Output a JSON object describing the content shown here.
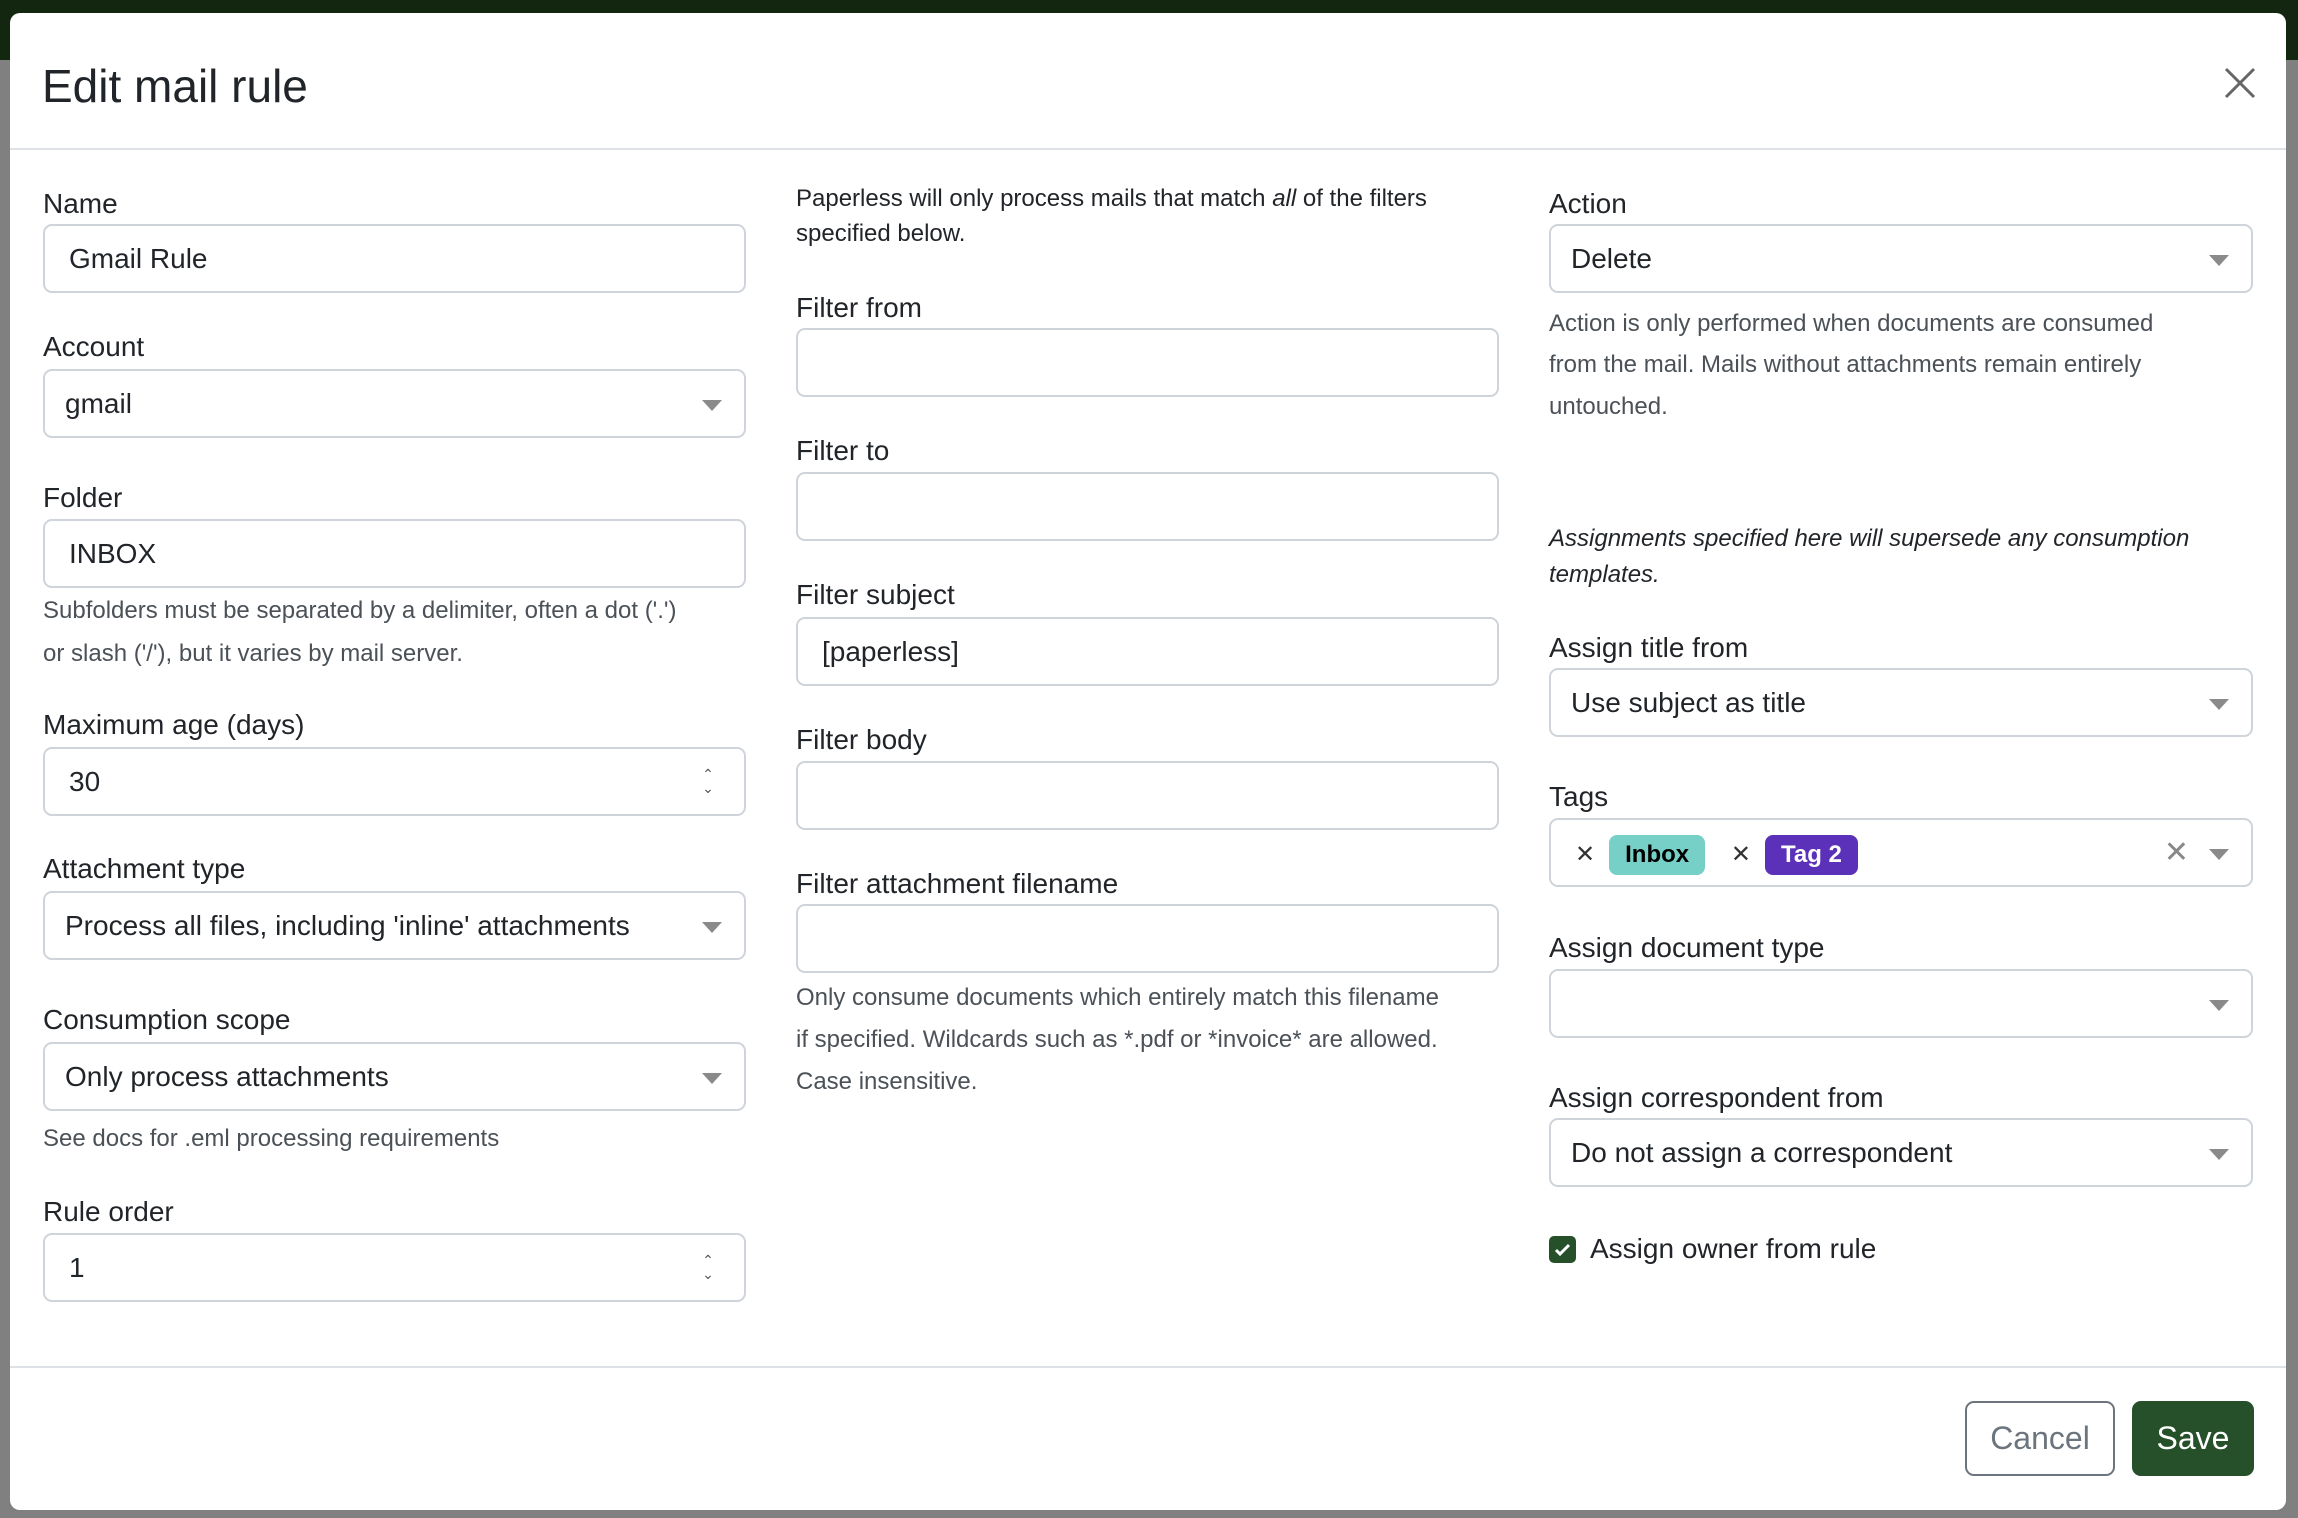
{
  "title": "Edit mail rule",
  "left": {
    "name": {
      "label": "Name",
      "value": "Gmail Rule"
    },
    "account": {
      "label": "Account",
      "value": "gmail"
    },
    "folder": {
      "label": "Folder",
      "value": "INBOX",
      "help1": "Subfolders must be separated by a delimiter, often a dot ('.')",
      "help2": "or slash ('/'), but it varies by mail server."
    },
    "max_age": {
      "label": "Maximum age (days)",
      "value": "30"
    },
    "attachment_type": {
      "label": "Attachment type",
      "value": "Process all files, including 'inline' attachments"
    },
    "consumption_scope": {
      "label": "Consumption scope",
      "value": "Only process attachments",
      "help": "See docs for .eml processing requirements"
    },
    "rule_order": {
      "label": "Rule order",
      "value": "1"
    }
  },
  "middle": {
    "intro_pre": "Paperless will only process mails that match ",
    "intro_em": "all",
    "intro_post": " of the filters",
    "intro2": "specified below.",
    "filter_from": {
      "label": "Filter from",
      "value": ""
    },
    "filter_to": {
      "label": "Filter to",
      "value": ""
    },
    "filter_subject": {
      "label": "Filter subject",
      "value": "[paperless]"
    },
    "filter_body": {
      "label": "Filter body",
      "value": ""
    },
    "filter_attachment": {
      "label": "Filter attachment filename",
      "value": "",
      "help1": "Only consume documents which entirely match this filename",
      "help2": "if specified. Wildcards such as *.pdf or *invoice* are allowed.",
      "help3": "Case insensitive."
    }
  },
  "right": {
    "action": {
      "label": "Action",
      "value": "Delete",
      "help1": "Action is only performed when documents are consumed",
      "help2": "from the mail. Mails without attachments remain entirely",
      "help3": "untouched."
    },
    "note1": "Assignments specified here will supersede any consumption",
    "note2": "templates.",
    "assign_title": {
      "label": "Assign title from",
      "value": "Use subject as title"
    },
    "tags": {
      "label": "Tags",
      "items": [
        {
          "label": "Inbox",
          "bg": "#76d0c7",
          "fg": "#000000"
        },
        {
          "label": "Tag 2",
          "bg": "#5a31b8",
          "fg": "#ffffff"
        }
      ]
    },
    "doc_type": {
      "label": "Assign document type",
      "value": ""
    },
    "correspondent": {
      "label": "Assign correspondent from",
      "value": "Do not assign a correspondent"
    },
    "owner": {
      "label": "Assign owner from rule",
      "checked": true
    }
  },
  "footer": {
    "cancel": "Cancel",
    "save": "Save"
  },
  "colors": {
    "primary": "#25502a"
  }
}
